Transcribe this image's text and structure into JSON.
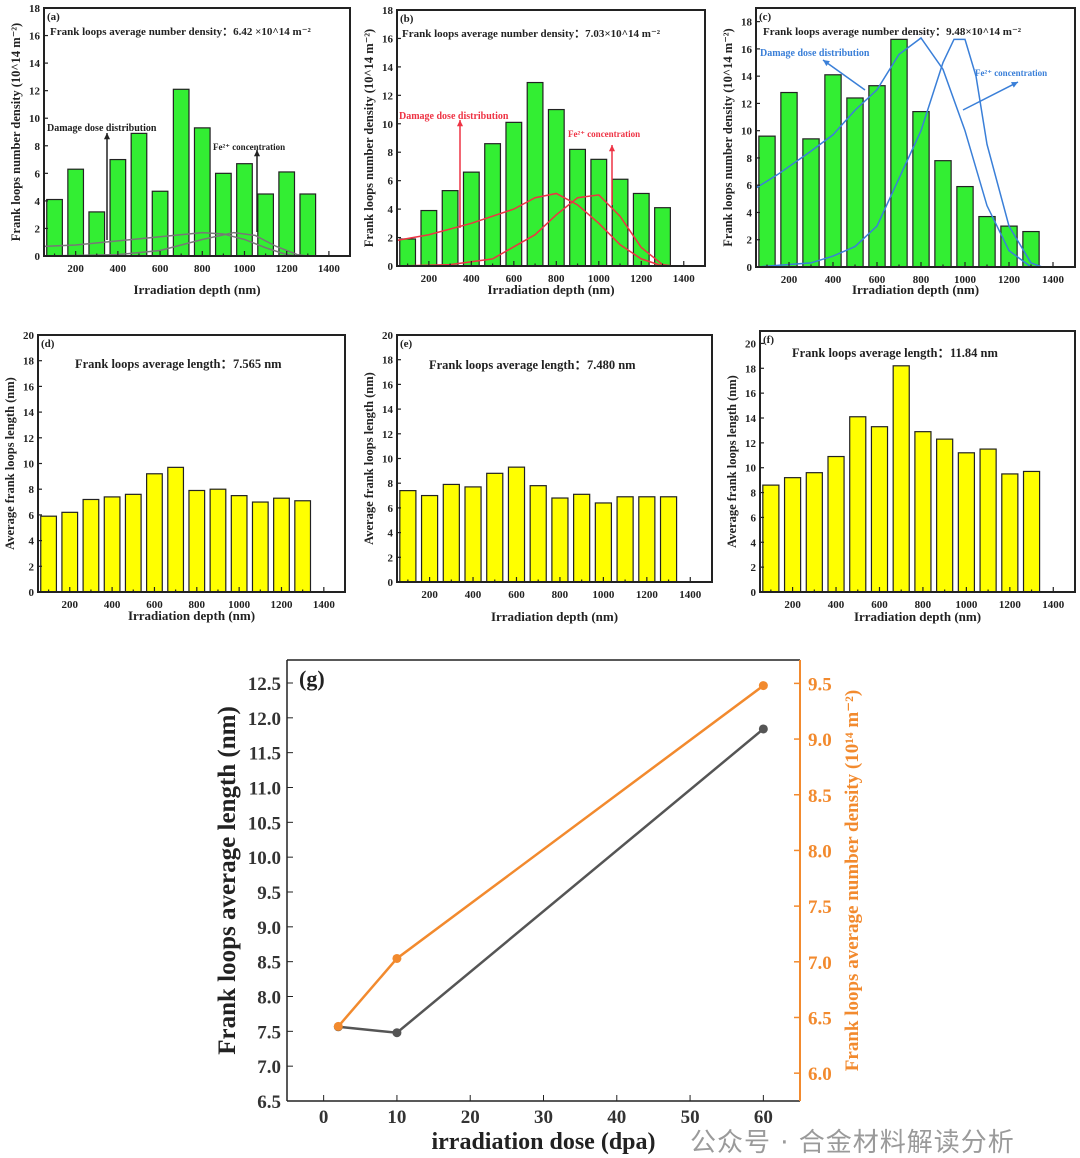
{
  "watermark": "公众号 · 合金材料解读分析",
  "chart_data": [
    {
      "type": "bar",
      "panel": "(a)",
      "title": "Frank loops average number density：6.42 ×10^14 m⁻²",
      "xlabel": "Irradiation depth (nm)",
      "ylabel": "Frank loops number density (10^14 m⁻²)",
      "xlim": [
        50,
        1500
      ],
      "ylim": [
        0,
        18
      ],
      "yticks": [
        0,
        2,
        4,
        6,
        8,
        10,
        12,
        14,
        16,
        18
      ],
      "xticks": [
        200,
        400,
        600,
        800,
        1000,
        1200,
        1400
      ],
      "x": [
        100,
        200,
        300,
        400,
        500,
        600,
        700,
        800,
        900,
        1000,
        1100,
        1200,
        1300
      ],
      "values": [
        4.1,
        6.3,
        3.2,
        7.0,
        8.9,
        4.7,
        12.1,
        9.3,
        6.0,
        6.7,
        4.5,
        6.1,
        4.5
      ],
      "bar_color": "#33ee33",
      "curve_color": "#777777",
      "annotations": [
        "Damage dose distribution",
        "Fe²⁺ concentration"
      ],
      "curves": [
        {
          "name": "Damage dose distribution",
          "points": [
            [
              50,
              0.7
            ],
            [
              200,
              0.8
            ],
            [
              400,
              1.1
            ],
            [
              600,
              1.4
            ],
            [
              800,
              1.7
            ],
            [
              900,
              1.6
            ],
            [
              1000,
              1.2
            ],
            [
              1100,
              0.6
            ],
            [
              1200,
              0.1
            ],
            [
              1250,
              0
            ]
          ]
        },
        {
          "name": "Fe²⁺ concentration",
          "points": [
            [
              50,
              0
            ],
            [
              400,
              0.1
            ],
            [
              600,
              0.4
            ],
            [
              800,
              1.2
            ],
            [
              950,
              1.7
            ],
            [
              1050,
              1.5
            ],
            [
              1150,
              0.7
            ],
            [
              1250,
              0.1
            ],
            [
              1300,
              0
            ]
          ]
        }
      ]
    },
    {
      "type": "bar",
      "panel": "(b)",
      "title": "Frank loops average number density：7.03×10^14 m⁻²",
      "xlabel": "Irradiation depth (nm)",
      "ylabel": "Frank loops number density (10^14 m⁻²)",
      "xlim": [
        50,
        1500
      ],
      "ylim": [
        0,
        18
      ],
      "yticks": [
        0,
        2,
        4,
        6,
        8,
        10,
        12,
        14,
        16,
        18
      ],
      "xticks": [
        200,
        400,
        600,
        800,
        1000,
        1200,
        1400
      ],
      "x": [
        100,
        200,
        300,
        400,
        500,
        600,
        700,
        800,
        900,
        1000,
        1100,
        1200,
        1300
      ],
      "values": [
        1.9,
        3.9,
        5.3,
        6.6,
        8.6,
        10.1,
        12.9,
        11.0,
        8.2,
        7.5,
        6.1,
        5.1,
        4.1
      ],
      "bar_color": "#33ee33",
      "curve_color": "#ee3344",
      "annotations": [
        "Damage dose distribution",
        "Fe²⁺ concentration"
      ],
      "curves": [
        {
          "name": "Damage dose distribution",
          "points": [
            [
              50,
              1.8
            ],
            [
              200,
              2.2
            ],
            [
              400,
              3.0
            ],
            [
              600,
              4.0
            ],
            [
              700,
              4.8
            ],
            [
              800,
              5.1
            ],
            [
              900,
              4.3
            ],
            [
              1000,
              3.0
            ],
            [
              1100,
              1.5
            ],
            [
              1200,
              0.5
            ],
            [
              1300,
              0
            ]
          ]
        },
        {
          "name": "Fe²⁺ concentration",
          "points": [
            [
              50,
              0
            ],
            [
              300,
              0.1
            ],
            [
              500,
              0.5
            ],
            [
              700,
              2.2
            ],
            [
              800,
              3.6
            ],
            [
              900,
              4.8
            ],
            [
              1000,
              5.0
            ],
            [
              1100,
              3.5
            ],
            [
              1200,
              1.3
            ],
            [
              1300,
              0.1
            ],
            [
              1350,
              0
            ]
          ]
        }
      ]
    },
    {
      "type": "bar",
      "panel": "(c)",
      "title": "Frank loops average number density：9.48×10^14 m⁻²",
      "xlabel": "Irradiation depth (nm)",
      "ylabel": "Frank loops number density (10^14 m⁻²)",
      "xlim": [
        50,
        1500
      ],
      "ylim": [
        0,
        19
      ],
      "yticks": [
        0,
        2,
        4,
        6,
        8,
        10,
        12,
        14,
        16,
        18
      ],
      "xticks": [
        200,
        400,
        600,
        800,
        1000,
        1200,
        1400
      ],
      "x": [
        100,
        200,
        300,
        400,
        500,
        600,
        700,
        800,
        900,
        1000,
        1100,
        1200,
        1300
      ],
      "values": [
        9.6,
        12.8,
        9.4,
        14.1,
        12.4,
        13.3,
        16.7,
        11.4,
        7.8,
        5.9,
        3.7,
        3.0,
        2.6
      ],
      "bar_color": "#33ee33",
      "curve_color": "#3a7fd8",
      "annotations": [
        "Damage dose distribution",
        "Fe²⁺ concentration"
      ],
      "curves": [
        {
          "name": "Damage dose distribution",
          "points": [
            [
              50,
              5.8
            ],
            [
              150,
              6.8
            ],
            [
              300,
              8.5
            ],
            [
              400,
              9.7
            ],
            [
              500,
              11.5
            ],
            [
              600,
              13
            ],
            [
              700,
              15.6
            ],
            [
              800,
              16.8
            ],
            [
              900,
              14.5
            ],
            [
              1000,
              10
            ],
            [
              1100,
              4.5
            ],
            [
              1200,
              1.2
            ],
            [
              1300,
              0
            ]
          ]
        },
        {
          "name": "Fe²⁺ concentration",
          "points": [
            [
              50,
              0
            ],
            [
              300,
              0.3
            ],
            [
              400,
              0.8
            ],
            [
              500,
              1.5
            ],
            [
              600,
              3
            ],
            [
              700,
              6.5
            ],
            [
              800,
              10
            ],
            [
              900,
              15
            ],
            [
              950,
              16.7
            ],
            [
              1000,
              16.7
            ],
            [
              1050,
              14
            ],
            [
              1100,
              9
            ],
            [
              1200,
              3
            ],
            [
              1300,
              0.3
            ],
            [
              1350,
              0
            ]
          ]
        }
      ]
    },
    {
      "type": "bar",
      "panel": "(d)",
      "title": "Frank loops average length：7.565 nm",
      "xlabel": "Irradiation depth (nm)",
      "ylabel": "Average frank loops length (nm)",
      "xlim": [
        50,
        1500
      ],
      "ylim": [
        0,
        20
      ],
      "yticks": [
        0,
        2,
        4,
        6,
        8,
        10,
        12,
        14,
        16,
        18,
        20
      ],
      "xticks": [
        200,
        400,
        600,
        800,
        1000,
        1200,
        1400
      ],
      "x": [
        100,
        200,
        300,
        400,
        500,
        600,
        700,
        800,
        900,
        1000,
        1100,
        1200,
        1300
      ],
      "values": [
        5.9,
        6.2,
        7.2,
        7.4,
        7.6,
        9.2,
        9.7,
        7.9,
        8.0,
        7.5,
        7.0,
        7.3,
        7.1
      ],
      "bar_color": "#ffff00"
    },
    {
      "type": "bar",
      "panel": "(e)",
      "title": "Frank loops average length：7.480 nm",
      "xlabel": "Irradiation depth (nm)",
      "ylabel": "Average frank loops length (nm)",
      "xlim": [
        50,
        1500
      ],
      "ylim": [
        0,
        20
      ],
      "yticks": [
        0,
        2,
        4,
        6,
        8,
        10,
        12,
        14,
        16,
        18,
        20
      ],
      "xticks": [
        200,
        400,
        600,
        800,
        1000,
        1200,
        1400
      ],
      "x": [
        100,
        200,
        300,
        400,
        500,
        600,
        700,
        800,
        900,
        1000,
        1100,
        1200,
        1300
      ],
      "values": [
        7.4,
        7.0,
        7.9,
        7.7,
        8.8,
        9.3,
        7.8,
        6.8,
        7.1,
        6.4,
        6.9,
        6.9,
        6.9
      ],
      "bar_color": "#ffff00"
    },
    {
      "type": "bar",
      "panel": "(f)",
      "title": "Frank loops average length：11.84 nm",
      "xlabel": "Irradiation depth (nm)",
      "ylabel": "Average frank loops length (nm)",
      "xlim": [
        50,
        1500
      ],
      "ylim": [
        0,
        21
      ],
      "yticks": [
        0,
        2,
        4,
        6,
        8,
        10,
        12,
        14,
        16,
        18,
        20
      ],
      "xticks": [
        200,
        400,
        600,
        800,
        1000,
        1200,
        1400
      ],
      "x": [
        100,
        200,
        300,
        400,
        500,
        600,
        700,
        800,
        900,
        1000,
        1100,
        1200,
        1300
      ],
      "values": [
        8.6,
        9.2,
        9.6,
        10.9,
        14.1,
        13.3,
        18.2,
        12.9,
        12.3,
        11.2,
        11.5,
        9.5,
        9.7
      ],
      "bar_color": "#ffff00"
    },
    {
      "type": "line",
      "panel": "(g)",
      "xlabel": "irradiation dose (dpa)",
      "ylabel": "Frank loops average length (nm)",
      "ylabel_right": "Frank loops average number density (10¹⁴ m⁻²)",
      "xlim": [
        -5,
        65
      ],
      "ylim": [
        6.5,
        12.83
      ],
      "ylim_right": [
        5.75,
        9.71
      ],
      "xticks": [
        0,
        10,
        20,
        30,
        40,
        50,
        60
      ],
      "yticks": [
        6.5,
        7.0,
        7.5,
        8.0,
        8.5,
        9.0,
        9.5,
        10.0,
        10.5,
        11.0,
        11.5,
        12.0,
        12.5
      ],
      "yticks_right": [
        6.0,
        6.5,
        7.0,
        7.5,
        8.0,
        8.5,
        9.0,
        9.5
      ],
      "series": [
        {
          "name": "Frank loops average length",
          "axis": "left",
          "color": "#555555",
          "x": [
            2,
            10,
            60
          ],
          "values": [
            7.565,
            7.48,
            11.84
          ]
        },
        {
          "name": "Frank loops average number density",
          "axis": "right",
          "color": "#f28a2e",
          "x": [
            2,
            10,
            60
          ],
          "values": [
            6.42,
            7.03,
            9.48
          ]
        }
      ]
    }
  ]
}
